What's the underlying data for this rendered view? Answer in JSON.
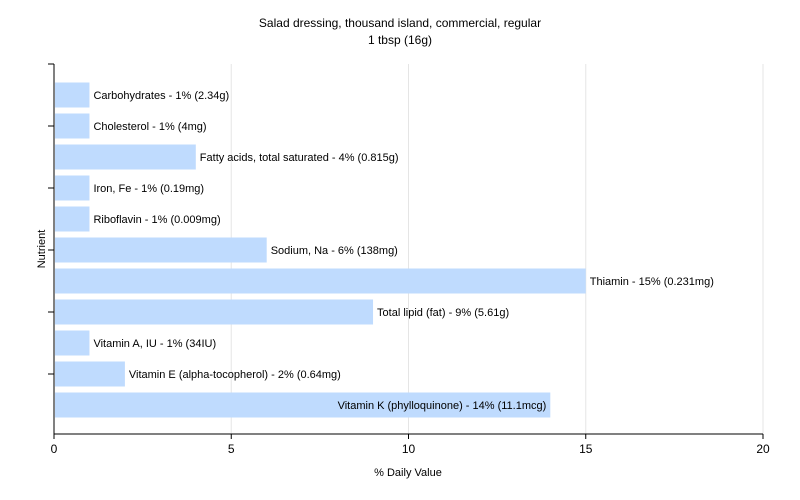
{
  "chart_data": {
    "type": "bar",
    "orientation": "horizontal",
    "title": "Salad dressing, thousand island, commercial, regular",
    "subtitle": "1 tbsp (16g)",
    "xlabel": "% Daily Value",
    "ylabel": "Nutrient",
    "xlim": [
      0,
      20
    ],
    "xticks": [
      0,
      5,
      10,
      15,
      20
    ],
    "grid": "vertical",
    "bar_color": "#bfdbfe",
    "bars": [
      {
        "label": "Carbohydrates - 1% (2.34g)",
        "value": 1
      },
      {
        "label": "Cholesterol - 1% (4mg)",
        "value": 1
      },
      {
        "label": "Fatty acids, total saturated - 4% (0.815g)",
        "value": 4
      },
      {
        "label": "Iron, Fe - 1% (0.19mg)",
        "value": 1
      },
      {
        "label": "Riboflavin - 1% (0.009mg)",
        "value": 1
      },
      {
        "label": "Sodium, Na - 6% (138mg)",
        "value": 6
      },
      {
        "label": "Thiamin - 15% (0.231mg)",
        "value": 15
      },
      {
        "label": "Total lipid (fat) - 9% (5.61g)",
        "value": 9
      },
      {
        "label": "Vitamin A, IU - 1% (34IU)",
        "value": 1
      },
      {
        "label": "Vitamin E (alpha-tocopherol) - 2% (0.64mg)",
        "value": 2
      },
      {
        "label": "Vitamin K (phylloquinone) - 14% (11.1mcg)",
        "value": 14
      }
    ]
  }
}
